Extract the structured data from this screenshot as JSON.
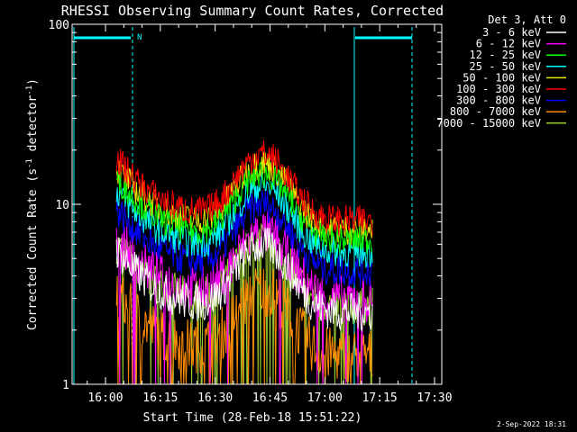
{
  "chart_data": {
    "type": "line",
    "title": "RHESSI Observing Summary Count Rates, Corrected",
    "xlabel": "Start Time (28-Feb-18 15:51:22)",
    "ylabel_main": "Corrected Count Rate (s",
    "ylabel_sup1": "-1",
    "ylabel_mid": " detector",
    "ylabel_sup2": "-1",
    "ylabel_end": ")",
    "x_range_minutes": [
      15.2,
      30.5
    ],
    "y_scale": "log",
    "ylim": [
      1,
      100
    ],
    "x_ticks": [
      {
        "label": "16:00",
        "t": 16.0
      },
      {
        "label": "16:15",
        "t": 16.25
      },
      {
        "label": "16:30",
        "t": 16.5
      },
      {
        "label": "16:45",
        "t": 16.75
      },
      {
        "label": "17:00",
        "t": 17.0
      },
      {
        "label": "17:15",
        "t": 17.25
      },
      {
        "label": "17:30",
        "t": 17.5
      }
    ],
    "y_ticks": [
      {
        "label": "1",
        "v": 1
      },
      {
        "label": "10",
        "v": 10
      },
      {
        "label": "100",
        "v": 100
      }
    ],
    "legend_header": "Det 3, Att 0",
    "legend_position": "top-right",
    "series": [
      {
        "name": "3 - 6 keV",
        "color": "#ffffff"
      },
      {
        "name": "6 - 12 keV",
        "color": "#ff00ff"
      },
      {
        "name": "12 - 25 keV",
        "color": "#00ff00"
      },
      {
        "name": "25 - 50 keV",
        "color": "#00ffff"
      },
      {
        "name": "50 - 100 keV",
        "color": "#e8e800"
      },
      {
        "name": "100 - 300 keV",
        "color": "#ff0000"
      },
      {
        "name": "300 - 800 keV",
        "color": "#0000ff"
      },
      {
        "name": "800 - 7000 keV",
        "color": "#ff8c00"
      },
      {
        "name": "7000 - 15000 keV",
        "color": "#9acd32"
      }
    ],
    "data_window": {
      "start": "16:03",
      "end": "17:13"
    },
    "night_flag": {
      "label": "N",
      "color": "#00ffff"
    },
    "footer_date": "2-Sep-2022 18:31"
  }
}
